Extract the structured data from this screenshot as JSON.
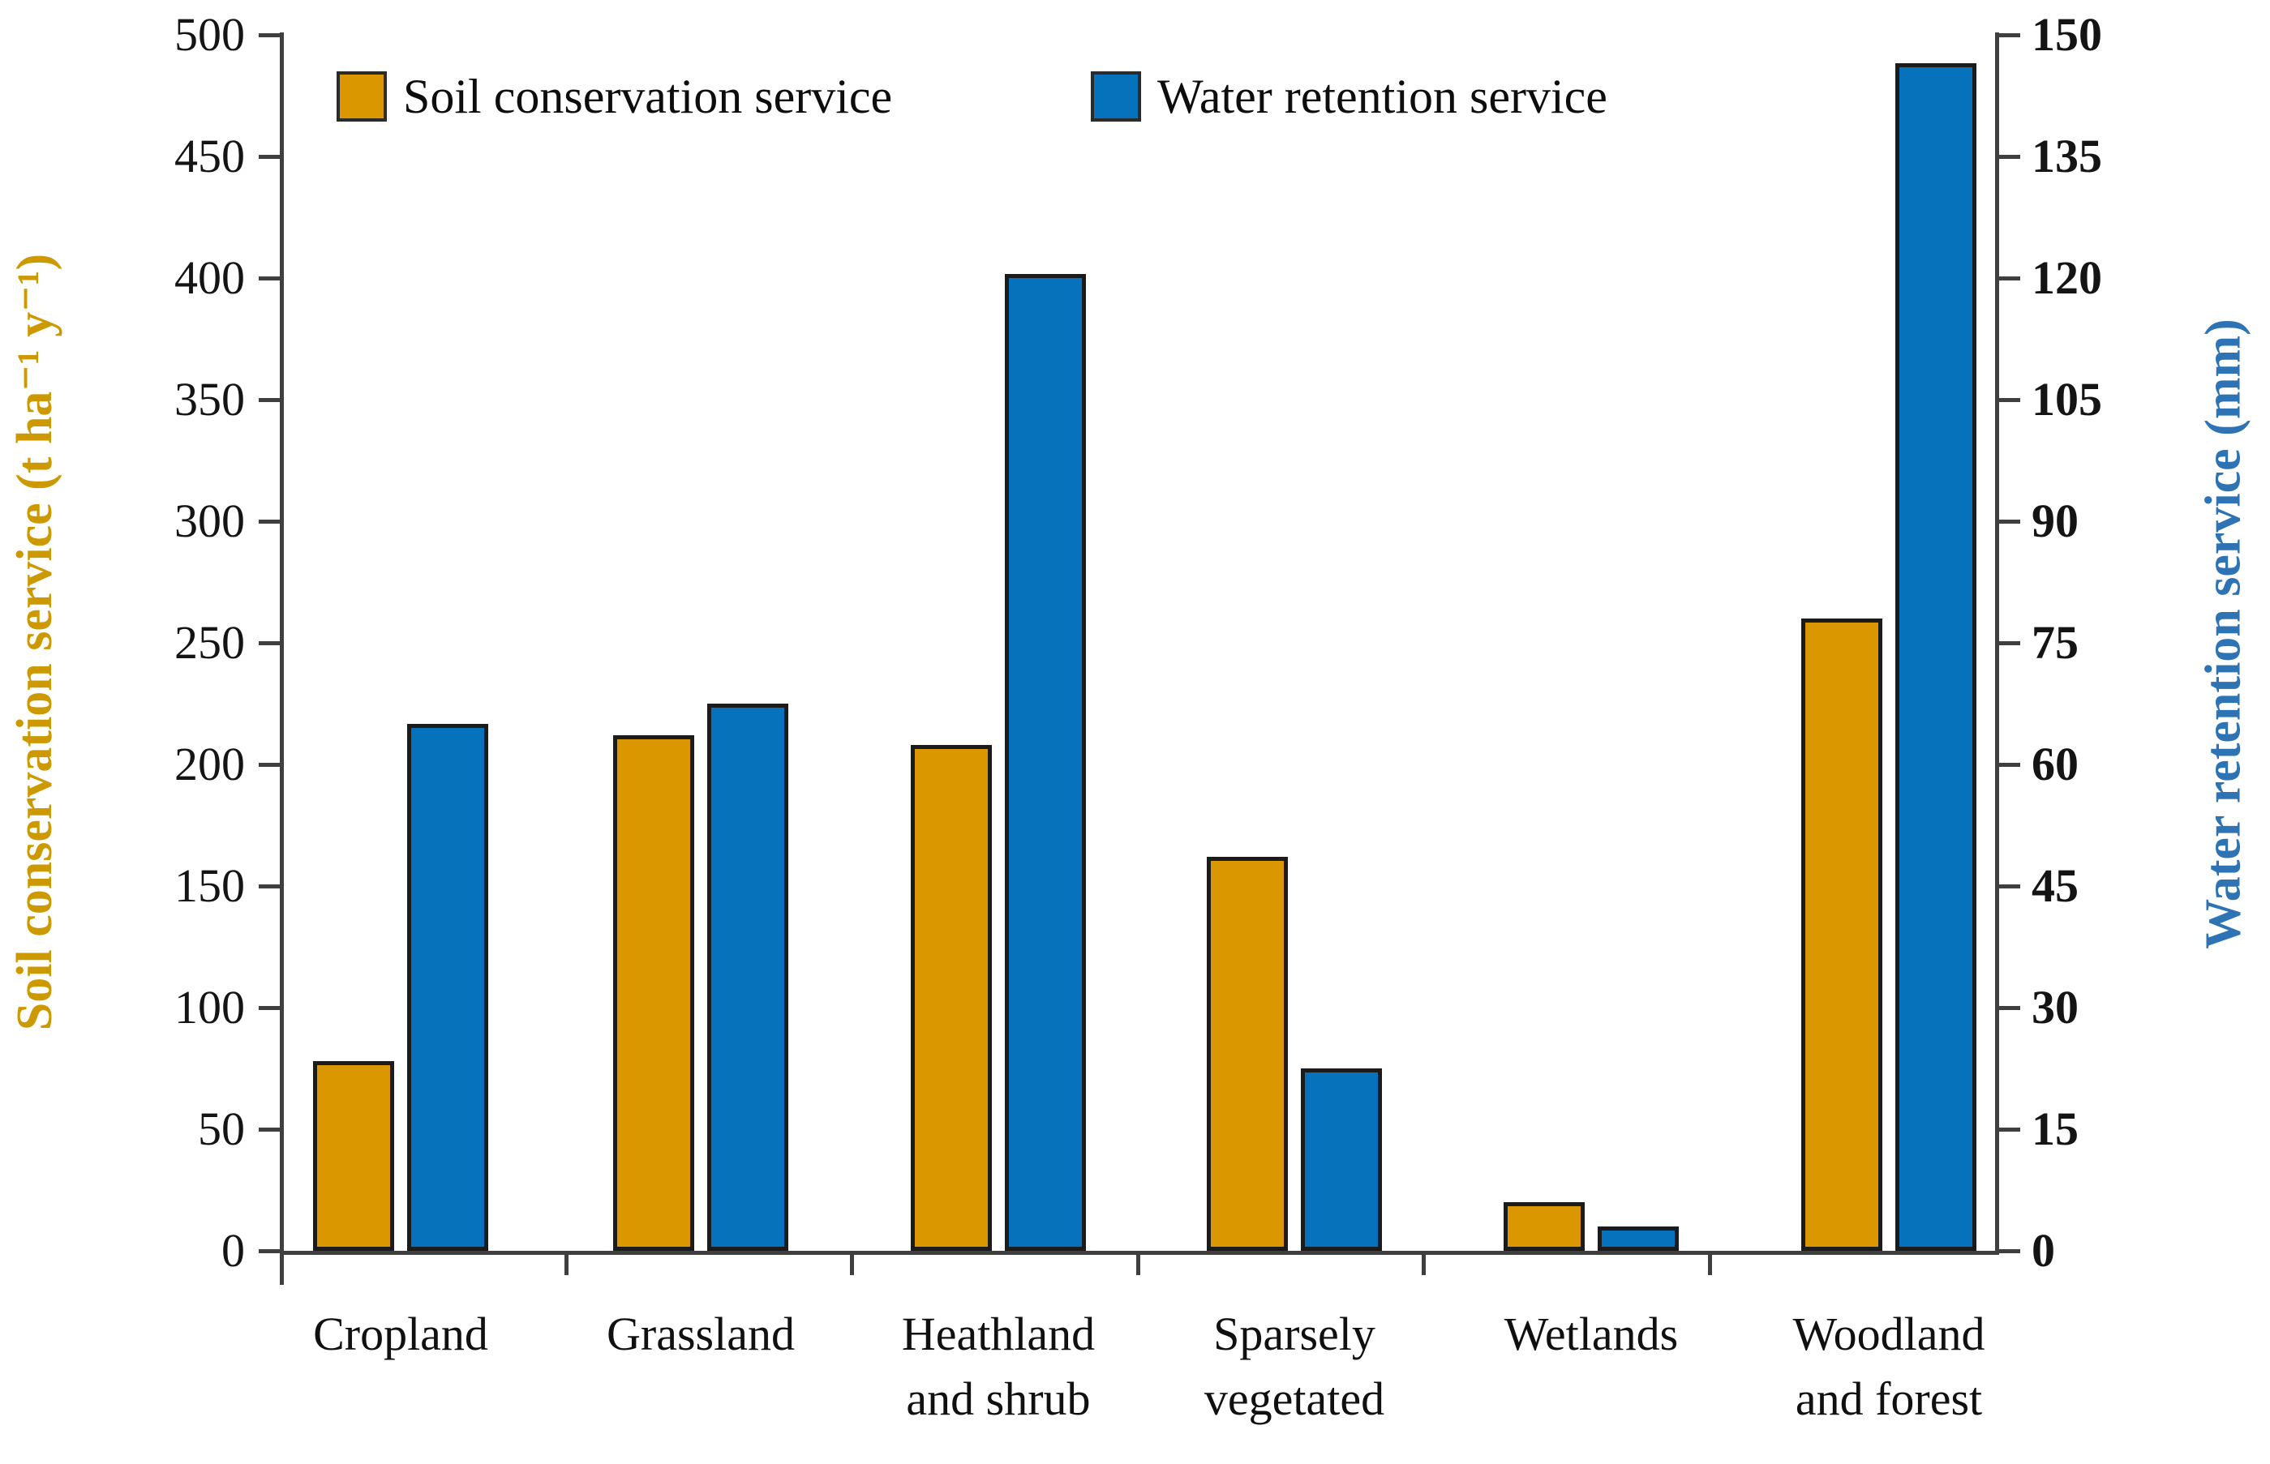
{
  "chart_data": {
    "type": "bar",
    "title": "",
    "categories": [
      "Cropland",
      "Grassland",
      "Heathland and shrub",
      "Sparsely vegetated",
      "Wetlands",
      "Woodland and forest"
    ],
    "category_label_lines": [
      [
        "Cropland"
      ],
      [
        "Grassland"
      ],
      [
        "Heathland",
        "and shrub"
      ],
      [
        "Sparsely",
        "vegetated"
      ],
      [
        "Wetlands"
      ],
      [
        "Woodland",
        "and forest"
      ]
    ],
    "series": [
      {
        "name": "Soil conservation service",
        "axis": "left",
        "unit": "t ha⁻¹ y⁻¹",
        "color": "#DB9700",
        "values": [
          78,
          212,
          208,
          162,
          20,
          260
        ]
      },
      {
        "name": "Water retention service",
        "axis": "right",
        "unit": "mm",
        "color": "#0672BC",
        "values": [
          65,
          67.5,
          120.5,
          22.5,
          3,
          146.5
        ]
      }
    ],
    "left_axis": {
      "label": "Soil conservation service (t ha⁻¹ y⁻¹)",
      "min": 0,
      "max": 500,
      "tick_step": 50,
      "ticks": [
        "0",
        "50",
        "100",
        "150",
        "200",
        "250",
        "300",
        "350",
        "400",
        "450",
        "500"
      ],
      "label_color": "#CC9900"
    },
    "right_axis": {
      "label": "Water retention service (mm)",
      "min": 0,
      "max": 150,
      "tick_step": 15,
      "ticks": [
        "0",
        "15",
        "30",
        "45",
        "60",
        "75",
        "90",
        "105",
        "120",
        "135",
        "150"
      ],
      "label_color": "#2E74B5"
    },
    "legend": {
      "position": "top",
      "items": [
        "Soil conservation service",
        "Water retention service"
      ]
    },
    "grid": false,
    "bar_border_color": "#1B1B1B",
    "axis_line_color": "#3F3F3F"
  }
}
